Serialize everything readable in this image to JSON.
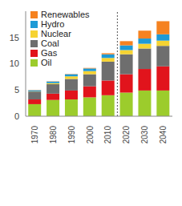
{
  "chart_data": {
    "type": "bar",
    "stacked": true,
    "legend": "upper left",
    "categories": [
      "1970",
      "1980",
      "1990",
      "2000",
      "2010",
      "2020",
      "2030",
      "2040"
    ],
    "series": [
      {
        "name": "Oil",
        "color": "#9ccc2c",
        "values": [
          2.3,
          3.1,
          3.2,
          3.6,
          4.0,
          4.5,
          4.9,
          4.9
        ]
      },
      {
        "name": "Gas",
        "color": "#e1141c",
        "values": [
          0.9,
          1.2,
          1.7,
          2.1,
          2.8,
          3.5,
          4.1,
          4.6
        ]
      },
      {
        "name": "Coal",
        "color": "#6e6e6e",
        "values": [
          1.5,
          1.8,
          2.2,
          2.3,
          3.6,
          3.8,
          3.9,
          3.9
        ]
      },
      {
        "name": "Nuclear",
        "color": "#f6d332",
        "values": [
          0.05,
          0.2,
          0.5,
          0.6,
          0.7,
          0.8,
          0.9,
          1.0
        ]
      },
      {
        "name": "Hydro",
        "color": "#1e9ad6",
        "values": [
          0.2,
          0.3,
          0.4,
          0.5,
          0.7,
          0.9,
          1.0,
          1.2
        ]
      },
      {
        "name": "Renewables",
        "color": "#f58220",
        "values": [
          0.05,
          0.05,
          0.05,
          0.1,
          0.2,
          0.8,
          1.5,
          2.5
        ]
      }
    ],
    "ylim": [
      0,
      20
    ],
    "yticks": [
      0,
      5,
      10,
      15
    ]
  }
}
